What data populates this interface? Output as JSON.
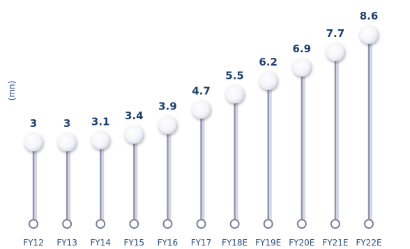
{
  "chart_data": {
    "type": "lollipop",
    "categories": [
      "FY12",
      "FY13",
      "FY14",
      "FY15",
      "FY16",
      "FY17",
      "FY18E",
      "FY19E",
      "FY20E",
      "FY21E",
      "FY22E"
    ],
    "values": [
      3,
      3,
      3.1,
      3.4,
      3.9,
      4.7,
      5.5,
      6.2,
      6.9,
      7.7,
      8.6
    ],
    "value_labels": [
      "3",
      "3",
      "3.1",
      "3.4",
      "3.9",
      "4.7",
      "5.5",
      "6.2",
      "6.9",
      "7.7",
      "8.6"
    ],
    "ylabel": "(mn)",
    "ylim": [
      0,
      9
    ],
    "grid": false,
    "legend": "none",
    "colors": {
      "label": "#1f3f6e",
      "category": "#274a80",
      "stem": "#8f95ab",
      "stem_shadow": "#c9cce0",
      "base_ring": "#7a7f97",
      "head_fill": "#f7f7fc",
      "head_shadow": "#c5c8dc"
    }
  }
}
